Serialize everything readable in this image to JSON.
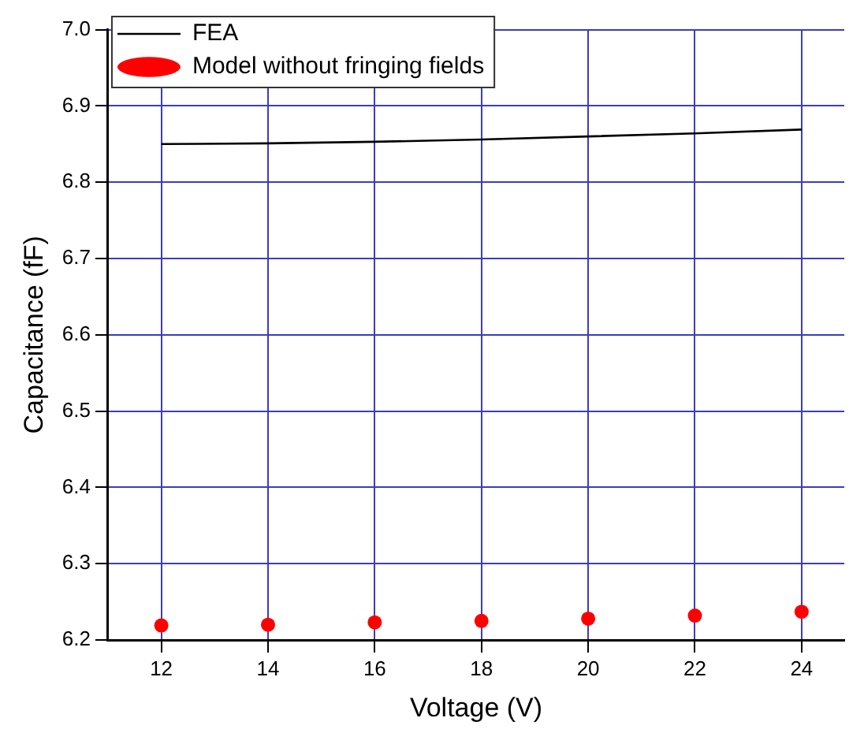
{
  "chart_data": {
    "type": "line",
    "xlabel": "Voltage (V)",
    "ylabel": "Capacitance (fF)",
    "x": [
      12,
      14,
      16,
      18,
      20,
      22,
      24
    ],
    "series": [
      {
        "name": "FEA",
        "color": "#000000",
        "values": [
          6.85,
          6.851,
          6.853,
          6.856,
          6.86,
          6.864,
          6.869
        ],
        "marker": "none"
      },
      {
        "name": "Model without fringing fields",
        "type": "scatter",
        "color": "#ff0000",
        "values": [
          6.219,
          6.22,
          6.223,
          6.225,
          6.228,
          6.232,
          6.237
        ],
        "marker": "circle"
      }
    ],
    "xlim": [
      11,
      24.8
    ],
    "xticks": [
      12,
      14,
      16,
      18,
      20,
      22,
      24
    ],
    "ylim": [
      6.2,
      7.0
    ],
    "yticks": [
      6.2,
      6.3,
      6.4,
      6.5,
      6.6,
      6.7,
      6.8,
      6.9,
      {
        "value": 7,
        "label": "7.0"
      }
    ],
    "grid": true,
    "legend": "top left"
  }
}
